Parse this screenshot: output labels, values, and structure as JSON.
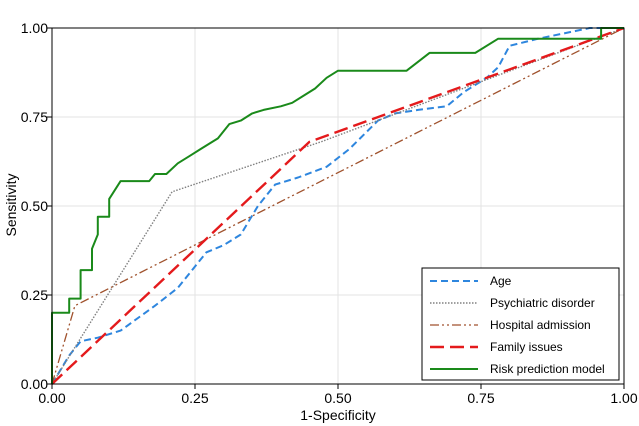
{
  "chart_data": {
    "type": "line",
    "xlabel": "1-Specificity",
    "ylabel": "Sensitivity",
    "xlim": [
      0,
      1
    ],
    "ylim": [
      0,
      1
    ],
    "x_ticks": [
      0,
      0.25,
      0.5,
      0.75,
      1
    ],
    "x_tick_labels": [
      "0.00",
      "0.25",
      "0.50",
      "0.75",
      "1.00"
    ],
    "y_ticks": [
      0,
      0.25,
      0.5,
      0.75,
      1
    ],
    "y_tick_labels": [
      "0.00",
      "0.25",
      "0.50",
      "0.75",
      "1.00"
    ],
    "grid": true,
    "legend_position": "bottom-right",
    "series": [
      {
        "name": "Age",
        "color": "#2e86de",
        "dash": "dashed",
        "points": [
          [
            0,
            0
          ],
          [
            0.03,
            0.08
          ],
          [
            0.05,
            0.12
          ],
          [
            0.08,
            0.13
          ],
          [
            0.12,
            0.15
          ],
          [
            0.18,
            0.22
          ],
          [
            0.22,
            0.27
          ],
          [
            0.25,
            0.33
          ],
          [
            0.27,
            0.37
          ],
          [
            0.3,
            0.39
          ],
          [
            0.33,
            0.42
          ],
          [
            0.36,
            0.5
          ],
          [
            0.39,
            0.56
          ],
          [
            0.43,
            0.58
          ],
          [
            0.48,
            0.61
          ],
          [
            0.52,
            0.66
          ],
          [
            0.57,
            0.74
          ],
          [
            0.6,
            0.76
          ],
          [
            0.64,
            0.77
          ],
          [
            0.69,
            0.78
          ],
          [
            0.72,
            0.82
          ],
          [
            0.76,
            0.86
          ],
          [
            0.78,
            0.89
          ],
          [
            0.8,
            0.95
          ],
          [
            0.85,
            0.97
          ],
          [
            0.91,
            0.99
          ],
          [
            0.94,
            1.0
          ],
          [
            1.0,
            1.0
          ]
        ]
      },
      {
        "name": "Psychiatric disorder",
        "color": "#808080",
        "dash": "dotted",
        "points": [
          [
            0,
            0
          ],
          [
            0.21,
            0.54
          ],
          [
            0.47,
            0.68
          ],
          [
            1.0,
            1.0
          ]
        ]
      },
      {
        "name": "Hospital admission",
        "color": "#a0522d",
        "dash": "dash-dot-dot",
        "points": [
          [
            0,
            0
          ],
          [
            0.04,
            0.22
          ],
          [
            1.0,
            1.0
          ]
        ]
      },
      {
        "name": "Family issues",
        "color": "#e41a1c",
        "dash": "long-dash",
        "points": [
          [
            0,
            0
          ],
          [
            0.45,
            0.68
          ],
          [
            1.0,
            1.0
          ]
        ]
      },
      {
        "name": "Risk prediction model",
        "color": "#1a8a1a",
        "dash": "solid",
        "points": [
          [
            0,
            0
          ],
          [
            0,
            0.2
          ],
          [
            0.03,
            0.2
          ],
          [
            0.03,
            0.24
          ],
          [
            0.05,
            0.24
          ],
          [
            0.05,
            0.32
          ],
          [
            0.07,
            0.32
          ],
          [
            0.07,
            0.38
          ],
          [
            0.08,
            0.42
          ],
          [
            0.08,
            0.47
          ],
          [
            0.1,
            0.47
          ],
          [
            0.1,
            0.52
          ],
          [
            0.12,
            0.57
          ],
          [
            0.17,
            0.57
          ],
          [
            0.18,
            0.59
          ],
          [
            0.2,
            0.59
          ],
          [
            0.22,
            0.62
          ],
          [
            0.24,
            0.64
          ],
          [
            0.26,
            0.66
          ],
          [
            0.28,
            0.68
          ],
          [
            0.29,
            0.69
          ],
          [
            0.31,
            0.73
          ],
          [
            0.33,
            0.74
          ],
          [
            0.35,
            0.76
          ],
          [
            0.37,
            0.77
          ],
          [
            0.4,
            0.78
          ],
          [
            0.42,
            0.79
          ],
          [
            0.44,
            0.81
          ],
          [
            0.46,
            0.83
          ],
          [
            0.48,
            0.86
          ],
          [
            0.5,
            0.88
          ],
          [
            0.62,
            0.88
          ],
          [
            0.66,
            0.93
          ],
          [
            0.74,
            0.93
          ],
          [
            0.78,
            0.97
          ],
          [
            0.96,
            0.97
          ],
          [
            0.96,
            1.0
          ],
          [
            1.0,
            1.0
          ]
        ]
      }
    ]
  }
}
